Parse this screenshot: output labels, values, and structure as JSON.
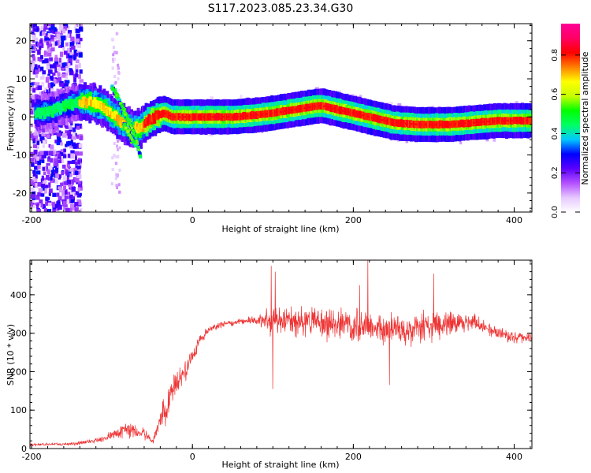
{
  "title": "S117.2023.085.23.34.G30",
  "chart_data": [
    {
      "type": "heatmap",
      "xlabel": "Height of straight line (km)",
      "ylabel": "Frequency (Hz)",
      "xlim": [
        -202,
        422
      ],
      "ylim": [
        -25,
        24.5
      ],
      "xticks": [
        -200,
        0,
        200,
        400
      ],
      "yticks": [
        -20,
        -10,
        0,
        10,
        20
      ],
      "colorbar": {
        "label": "Normalized spectral amplitude",
        "ticks": [
          "0.0",
          "0.2",
          "0.4",
          "0.6",
          "0.8"
        ],
        "range": [
          0,
          0.96
        ],
        "colors": [
          "#ffffff",
          "#e6c8ff",
          "#b450ff",
          "#5a00ff",
          "#0000ff",
          "#00c8ff",
          "#00ff64",
          "#00ff00",
          "#c8ff00",
          "#ffff00",
          "#ff8000",
          "#ff0000",
          "#ff0064",
          "#ff0096"
        ]
      },
      "ridge": {
        "x": [
          -190,
          -170,
          -150,
          -130,
          -110,
          -90,
          -75,
          -65,
          -55,
          -45,
          -35,
          -25,
          -10,
          0,
          50,
          80,
          100,
          130,
          160,
          180,
          200,
          220,
          250,
          280,
          320,
          350,
          380,
          420
        ],
        "y": [
          1,
          2,
          3.5,
          4,
          2.5,
          -1,
          -3,
          -3,
          -1,
          0,
          1,
          0,
          0,
          0,
          0,
          0.5,
          1,
          2,
          3,
          2,
          1,
          0,
          -1.5,
          -2,
          -2,
          -1.5,
          -1,
          -1
        ]
      },
      "branches": [
        {
          "x": [
            -100,
            -95,
            -88,
            -82,
            -76,
            -70,
            -64
          ],
          "y": [
            8,
            6,
            3,
            0,
            -2.5,
            -6,
            -11
          ]
        },
        {
          "x": [
            -85,
            -80,
            -75,
            -70
          ],
          "y": [
            -2,
            -4,
            -6,
            -7
          ]
        }
      ]
    },
    {
      "type": "line",
      "xlabel": "Height of straight line (km)",
      "ylabel": "SNR (10 * v/v)",
      "xlim": [
        -202,
        422
      ],
      "ylim": [
        0,
        490
      ],
      "xticks": [
        -200,
        0,
        200,
        400
      ],
      "yticks": [
        0,
        100,
        200,
        300,
        400
      ],
      "color": "#ee3333",
      "envelope": {
        "x": [
          -202,
          -150,
          -120,
          -100,
          -80,
          -60,
          -50,
          -45,
          -40,
          -30,
          -20,
          -10,
          0,
          10,
          20,
          40,
          60,
          80,
          100,
          120,
          150,
          200,
          250,
          300,
          350,
          380,
          400,
          422
        ],
        "mean": [
          10,
          12,
          20,
          35,
          50,
          40,
          20,
          40,
          70,
          130,
          170,
          200,
          240,
          285,
          310,
          325,
          330,
          335,
          330,
          330,
          330,
          320,
          310,
          320,
          330,
          300,
          290,
          290
        ],
        "spread": [
          5,
          5,
          8,
          15,
          30,
          20,
          10,
          25,
          40,
          60,
          60,
          40,
          30,
          20,
          12,
          12,
          12,
          15,
          60,
          50,
          55,
          60,
          55,
          50,
          30,
          25,
          20,
          15
        ]
      },
      "spikes": [
        {
          "x": 98,
          "y": 475
        },
        {
          "x": 103,
          "y": 460
        },
        {
          "x": 218,
          "y": 490
        },
        {
          "x": 208,
          "y": 425
        },
        {
          "x": 300,
          "y": 455
        },
        {
          "x": 100,
          "y": 155
        },
        {
          "x": 245,
          "y": 165
        }
      ]
    }
  ]
}
